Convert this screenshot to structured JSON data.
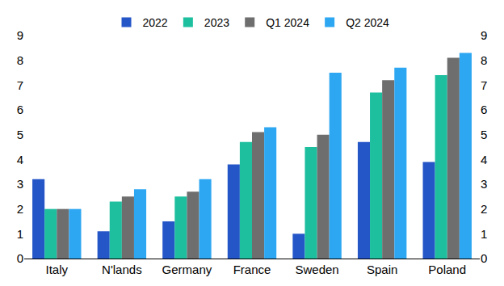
{
  "chart_data": {
    "type": "bar",
    "categories": [
      "Italy",
      "N'lands",
      "Germany",
      "France",
      "Sweden",
      "Spain",
      "Poland"
    ],
    "series": [
      {
        "name": "2022",
        "color": "#2456c8",
        "values": [
          3.2,
          1.1,
          1.5,
          3.8,
          1.0,
          4.7,
          3.9
        ]
      },
      {
        "name": "2023",
        "color": "#1dbf9f",
        "values": [
          2.0,
          2.3,
          2.5,
          4.7,
          4.5,
          6.7,
          7.4
        ]
      },
      {
        "name": "Q1 2024",
        "color": "#6e6e6e",
        "values": [
          2.0,
          2.5,
          2.7,
          5.1,
          5.0,
          7.2,
          8.1
        ]
      },
      {
        "name": "Q2 2024",
        "color": "#2ea7f2",
        "values": [
          2.0,
          2.8,
          3.2,
          5.3,
          7.5,
          7.7,
          8.3
        ]
      }
    ],
    "ylim": [
      0,
      9
    ],
    "yticks": [
      0,
      1,
      2,
      3,
      4,
      5,
      6,
      7,
      8,
      9
    ],
    "y2lim": [
      0,
      9
    ],
    "y2ticks": [
      0,
      1,
      2,
      3,
      4,
      5,
      6,
      7,
      8,
      9
    ],
    "grid": false,
    "legend": "top"
  }
}
